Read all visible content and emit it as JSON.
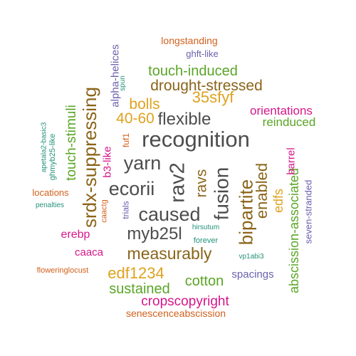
{
  "palette": {
    "gray": "#4d4d4d",
    "brown": "#8a6419",
    "gold": "#dea21f",
    "green": "#5aa526",
    "magenta": "#d6168a",
    "orange": "#d2601c",
    "purple": "#6a61ad",
    "teal": "#239279"
  },
  "words": [
    {
      "text": "recognition",
      "color": "gray"
    },
    {
      "text": "caused",
      "color": "gray"
    },
    {
      "text": "ecorii",
      "color": "gray"
    },
    {
      "text": "yarn",
      "color": "gray"
    },
    {
      "text": "rav2",
      "color": "gray"
    },
    {
      "text": "myb25l",
      "color": "gray"
    },
    {
      "text": "flexible",
      "color": "gray"
    },
    {
      "text": "fusion",
      "color": "gray"
    },
    {
      "text": "srdx-suppressing",
      "color": "brown"
    },
    {
      "text": "bipartite",
      "color": "brown"
    },
    {
      "text": "measurably",
      "color": "brown"
    },
    {
      "text": "ravs",
      "color": "brown"
    },
    {
      "text": "enabled",
      "color": "brown"
    },
    {
      "text": "drought-stressed",
      "color": "brown"
    },
    {
      "text": "35sfyf",
      "color": "gold"
    },
    {
      "text": "40-60",
      "color": "gold"
    },
    {
      "text": "bolls",
      "color": "gold"
    },
    {
      "text": "edf1234",
      "color": "gold"
    },
    {
      "text": "edfs",
      "color": "gold"
    },
    {
      "text": "touch-induced",
      "color": "green"
    },
    {
      "text": "touch-stimuli",
      "color": "green"
    },
    {
      "text": "abscission-associated",
      "color": "green"
    },
    {
      "text": "reinduced",
      "color": "green"
    },
    {
      "text": "sustained",
      "color": "green"
    },
    {
      "text": "cotton",
      "color": "green"
    },
    {
      "text": "orientations",
      "color": "magenta"
    },
    {
      "text": "cropscopyright",
      "color": "magenta"
    },
    {
      "text": "erebp",
      "color": "magenta"
    },
    {
      "text": "caaca",
      "color": "magenta"
    },
    {
      "text": "barrel",
      "color": "magenta"
    },
    {
      "text": "b3-like",
      "color": "magenta"
    },
    {
      "text": "longstanding",
      "color": "orange"
    },
    {
      "text": "locations",
      "color": "orange"
    },
    {
      "text": "senescenceabscission",
      "color": "orange"
    },
    {
      "text": "floweringlocust",
      "color": "orange"
    },
    {
      "text": "fuf1",
      "color": "orange"
    },
    {
      "text": "caactg",
      "color": "orange"
    },
    {
      "text": "ghft-like",
      "color": "purple"
    },
    {
      "text": "alpha-helices",
      "color": "purple"
    },
    {
      "text": "seven-stranded",
      "color": "purple"
    },
    {
      "text": "spacings",
      "color": "purple"
    },
    {
      "text": "trials",
      "color": "purple"
    },
    {
      "text": "apetala2-basic3",
      "color": "teal"
    },
    {
      "text": "ghmyb25-like",
      "color": "teal"
    },
    {
      "text": "penalties",
      "color": "teal"
    },
    {
      "text": "hirsutum",
      "color": "teal"
    },
    {
      "text": "forever",
      "color": "teal"
    },
    {
      "text": "vp1abi3",
      "color": "teal"
    },
    {
      "text": "spun",
      "color": "teal"
    }
  ]
}
